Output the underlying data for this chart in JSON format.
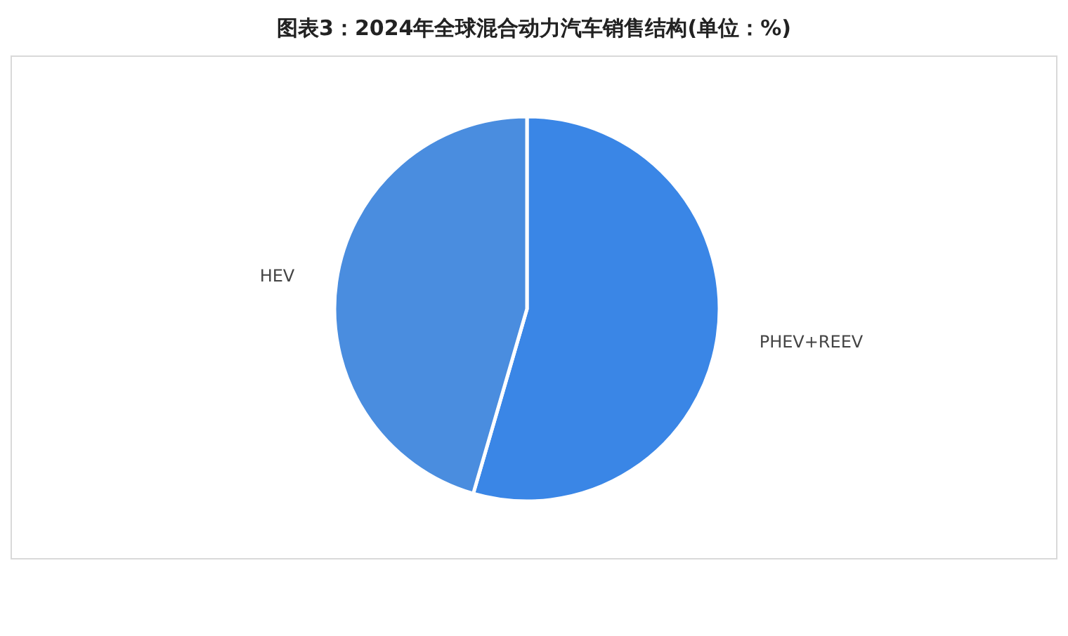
{
  "chart_data": {
    "type": "pie",
    "title": "图表3：2024年全球混合动力汽车销售结构(单位：%)",
    "categories": [
      "PHEV+REEV",
      "HEV"
    ],
    "values": [
      54.5,
      45.5
    ],
    "colors": [
      "#3a86e6",
      "#4a8ddf"
    ],
    "legend": false
  }
}
